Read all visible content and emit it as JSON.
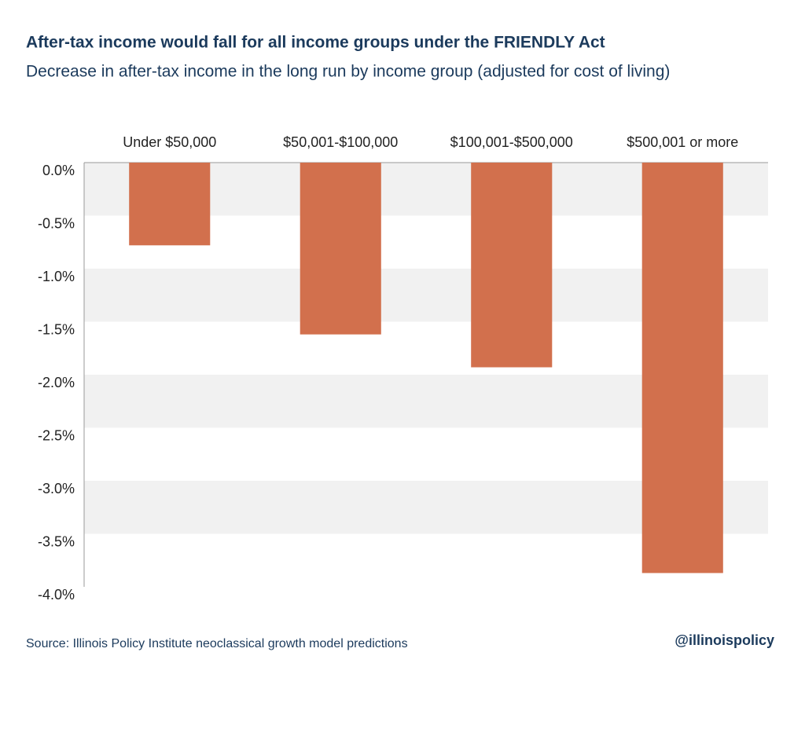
{
  "chart_data": {
    "type": "bar",
    "title": "After-tax income would fall for all income groups under the FRIENDLY Act",
    "subtitle": "Decrease in after-tax income in the long run by income group (adjusted for cost of living)",
    "categories": [
      "Under $50,000",
      "$50,001-$100,000",
      "$100,001-$500,000",
      "$500,001 or more"
    ],
    "values": [
      -0.78,
      -1.62,
      -1.93,
      -3.87
    ],
    "color": "#d2704d",
    "ylim": [
      -4,
      0
    ],
    "yticks": [
      {
        "value": 0,
        "label": "0.0%"
      },
      {
        "value": -0.5,
        "label": "-0.5%"
      },
      {
        "value": -1,
        "label": "-1.0%"
      },
      {
        "value": -1.5,
        "label": "-1.5%"
      },
      {
        "value": -2,
        "label": "-2.0%"
      },
      {
        "value": -2.5,
        "label": "-2.5%"
      },
      {
        "value": -3,
        "label": "-3.0%"
      },
      {
        "value": -3.5,
        "label": "-3.5%"
      },
      {
        "value": -4,
        "label": "-4.0%"
      }
    ],
    "grid": true,
    "source": "Source: Illinois Policy Institute neoclassical growth model predictions",
    "credit": "@illinoispolicy"
  }
}
